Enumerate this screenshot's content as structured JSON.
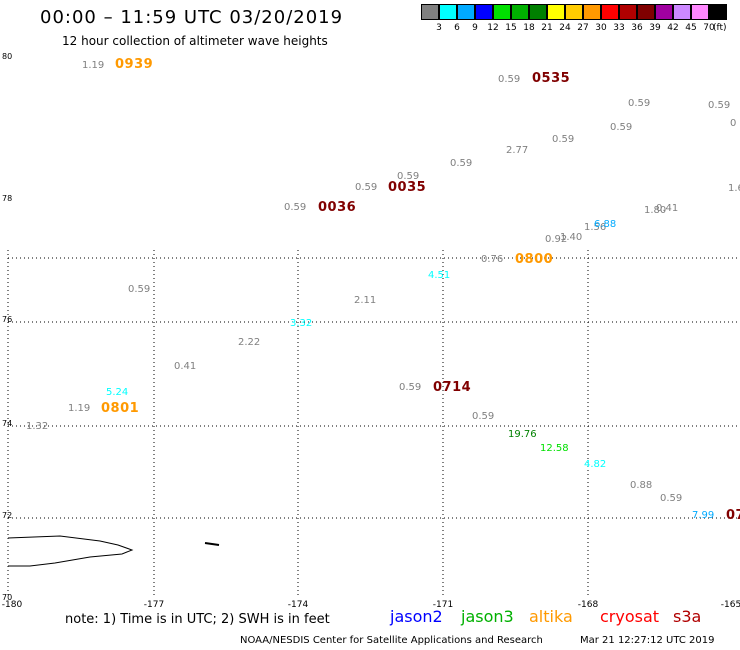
{
  "header": {
    "title": "00:00 – 11:59 UTC 03/20/2019",
    "subtitle": "12 hour collection of altimeter wave heights"
  },
  "legend": {
    "colors": [
      "#808080",
      "#00ffff",
      "#00aaff",
      "#0000ff",
      "#00e000",
      "#00b000",
      "#008000",
      "#ffff00",
      "#ffcc00",
      "#ff9900",
      "#ff0000",
      "#b00000",
      "#800000",
      "#a000a0",
      "#cc88ff",
      "#ff88ff",
      "#000000"
    ],
    "ticks": [
      "3",
      "6",
      "9",
      "12",
      "15",
      "18",
      "21",
      "24",
      "27",
      "30",
      "33",
      "36",
      "39",
      "42",
      "45",
      "70"
    ],
    "unit": "(ft)"
  },
  "axes": {
    "lat_labels": [
      "80",
      "78",
      "76",
      "74",
      "72",
      "70"
    ],
    "lon_labels": [
      "-180",
      "-177",
      "-174",
      "-171",
      "-168",
      "-165"
    ]
  },
  "observations": [
    {
      "text": "1.19",
      "color": "#808080",
      "kind": "swh"
    },
    {
      "text": "0939",
      "color": "#ff9900",
      "kind": "time"
    },
    {
      "text": "0.59",
      "color": "#808080",
      "kind": "swh"
    },
    {
      "text": "0535",
      "color": "#800000",
      "kind": "time"
    },
    {
      "text": "0.59",
      "color": "#808080",
      "kind": "swh"
    },
    {
      "text": "0.59",
      "color": "#808080",
      "kind": "swh"
    },
    {
      "text": "0",
      "color": "#808080",
      "kind": "swh"
    },
    {
      "text": "0.59",
      "color": "#808080",
      "kind": "swh"
    },
    {
      "text": "0.59",
      "color": "#808080",
      "kind": "swh"
    },
    {
      "text": "2.77",
      "color": "#808080",
      "kind": "swh"
    },
    {
      "text": "0.59",
      "color": "#808080",
      "kind": "swh"
    },
    {
      "text": "0.59",
      "color": "#808080",
      "kind": "swh"
    },
    {
      "text": "0.59",
      "color": "#808080",
      "kind": "swh"
    },
    {
      "text": "0035",
      "color": "#800000",
      "kind": "time"
    },
    {
      "text": "1.6",
      "color": "#808080",
      "kind": "swh"
    },
    {
      "text": "0.59",
      "color": "#808080",
      "kind": "swh"
    },
    {
      "text": "0036",
      "color": "#800000",
      "kind": "time"
    },
    {
      "text": "1.80",
      "color": "#808080",
      "kind": "swh"
    },
    {
      "text": "0.41",
      "color": "#808080",
      "kind": "swh"
    },
    {
      "text": "1.56",
      "color": "#808080",
      "kind": "swh"
    },
    {
      "text": "6.88",
      "color": "#00aaff",
      "kind": "swh"
    },
    {
      "text": "1.40",
      "color": "#808080",
      "kind": "swh"
    },
    {
      "text": "0.92",
      "color": "#808080",
      "kind": "swh"
    },
    {
      "text": "0.76",
      "color": "#808080",
      "kind": "swh"
    },
    {
      "text": "0800",
      "color": "#ff9900",
      "kind": "time"
    },
    {
      "text": "4.51",
      "color": "#00ffff",
      "kind": "swh"
    },
    {
      "text": "0.59",
      "color": "#808080",
      "kind": "swh"
    },
    {
      "text": "2.11",
      "color": "#808080",
      "kind": "swh"
    },
    {
      "text": "3.32",
      "color": "#00ffff",
      "kind": "swh"
    },
    {
      "text": "2.22",
      "color": "#808080",
      "kind": "swh"
    },
    {
      "text": "0.41",
      "color": "#808080",
      "kind": "swh"
    },
    {
      "text": "0.59",
      "color": "#808080",
      "kind": "swh"
    },
    {
      "text": "0714",
      "color": "#800000",
      "kind": "time"
    },
    {
      "text": "5.24",
      "color": "#00ffff",
      "kind": "swh"
    },
    {
      "text": "1.19",
      "color": "#808080",
      "kind": "swh"
    },
    {
      "text": "0801",
      "color": "#ff9900",
      "kind": "time"
    },
    {
      "text": "0.59",
      "color": "#808080",
      "kind": "swh"
    },
    {
      "text": "1.32",
      "color": "#808080",
      "kind": "swh"
    },
    {
      "text": "19.76",
      "color": "#008000",
      "kind": "swh"
    },
    {
      "text": "12.58",
      "color": "#00e000",
      "kind": "swh"
    },
    {
      "text": "4.82",
      "color": "#00ffff",
      "kind": "swh"
    },
    {
      "text": "0.88",
      "color": "#808080",
      "kind": "swh"
    },
    {
      "text": "0.59",
      "color": "#808080",
      "kind": "swh"
    },
    {
      "text": "7.99",
      "color": "#00aaff",
      "kind": "swh"
    },
    {
      "text": "07",
      "color": "#800000",
      "kind": "time"
    }
  ],
  "footer": {
    "note": "note: 1) Time is in UTC; 2) SWH is in feet",
    "satellites": [
      {
        "name": "jason2",
        "color": "#0000ff"
      },
      {
        "name": "jason3",
        "color": "#00b000"
      },
      {
        "name": "altika",
        "color": "#ff9900"
      },
      {
        "name": "cryosat",
        "color": "#ff0000"
      },
      {
        "name": "s3a",
        "color": "#b00000"
      }
    ],
    "credit": "NOAA/NESDIS Center for Satellite Applications and Research",
    "datestamp": "Mar 21 12:27:12 UTC 2019"
  }
}
